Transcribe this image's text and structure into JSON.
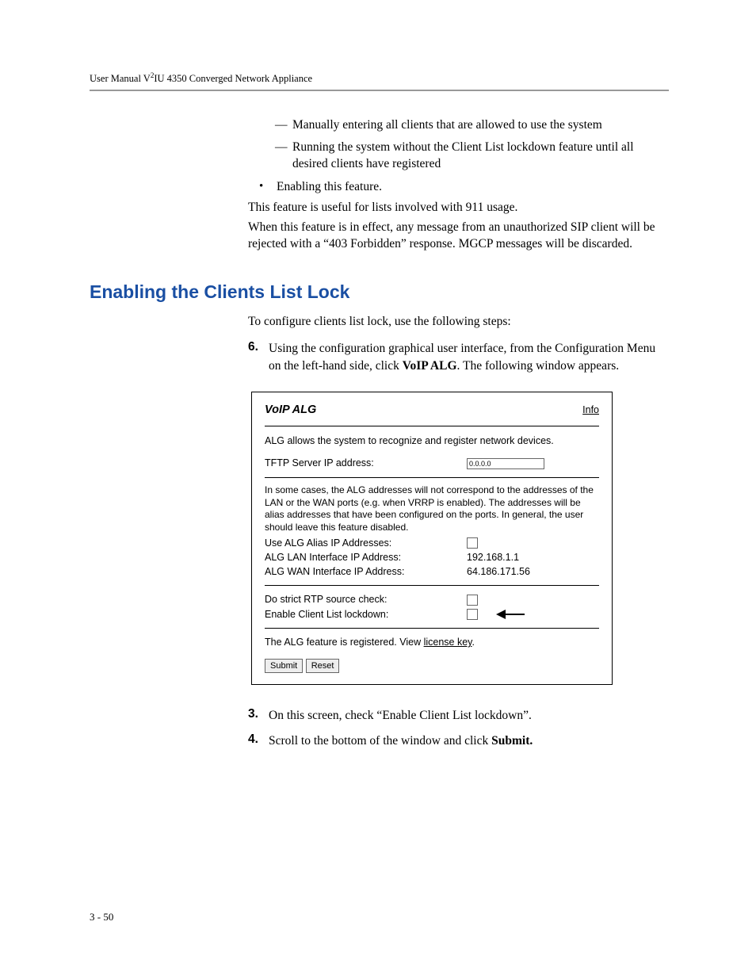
{
  "header": {
    "text_prefix": "User Manual V",
    "text_sup": "2",
    "text_suffix": "IU 4350 Converged Network Appliance"
  },
  "intro": {
    "dash_items": [
      "Manually entering all clients that are allowed to use the system",
      "Running the system without the Client List lockdown feature until all desired clients have registered"
    ],
    "bullet_item": "Enabling this feature.",
    "para1": "This feature is useful for lists involved with 911 usage.",
    "para2": "When this feature is in effect, any message from an unauthorized SIP client will be rejected with a “403 Forbidden” response. MGCP messages will be discarded."
  },
  "section_heading": "Enabling the Clients List Lock",
  "section_intro": "To configure clients list lock, use the following steps:",
  "steps": {
    "s6_num": "6.",
    "s6_text_a": "Using the configuration graphical user interface, from the Configuration Menu on the left-hand side, click ",
    "s6_bold": "VoIP ALG",
    "s6_text_b": ". The following window appears.",
    "s3_num": "3.",
    "s3_text": "On this screen, check “Enable Client List lockdown”.",
    "s4_num": "4.",
    "s4_text_a": "Scroll to the bottom of the window and click ",
    "s4_bold": "Submit."
  },
  "panel": {
    "title": "VoIP ALG",
    "info": "Info",
    "intro": "ALG allows the system to recognize and register network devices.",
    "tftp_label": "TFTP Server IP address:",
    "tftp_value": "0.0.0.0",
    "note": "In some cases, the ALG addresses will not correspond to the addresses of the LAN or the WAN ports (e.g. when VRRP is enabled). The addresses will be alias addresses that have been configured on the ports. In general, the user should leave this feature disabled.",
    "alias_label": "Use ALG Alias IP Addresses:",
    "lan_label": "ALG LAN Interface IP Address:",
    "lan_value": "192.168.1.1",
    "wan_label": "ALG WAN Interface IP Address:",
    "wan_value": "64.186.171.56",
    "rtp_label": "Do strict RTP source check:",
    "lockdown_label": "Enable Client List lockdown:",
    "license_pre": "The ALG feature is registered. View ",
    "license_link": "license key",
    "license_post": ".",
    "submit": "Submit",
    "reset": "Reset"
  },
  "footer": "3 - 50"
}
